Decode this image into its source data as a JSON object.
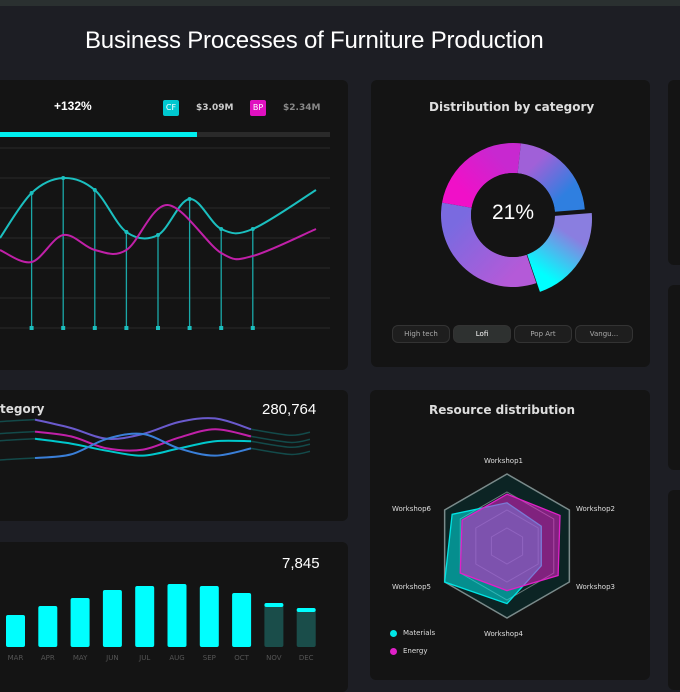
{
  "header": {
    "title": "Business Processes of Furniture Production"
  },
  "cashflow": {
    "change": "+132%",
    "progress": 0.61,
    "legend": [
      {
        "code": "CF",
        "value": "$3.09M",
        "color": "#00d8de"
      },
      {
        "code": "BP",
        "value": "$2.34M",
        "color": "#e010c0"
      }
    ],
    "chart_data": {
      "type": "line",
      "series": [
        {
          "color": "#1bbfbf",
          "points": [
            [
              0,
              3.0
            ],
            [
              1,
              4.5
            ],
            [
              2,
              5.0
            ],
            [
              3,
              4.6
            ],
            [
              4,
              3.2
            ],
            [
              5,
              3.1
            ],
            [
              6,
              4.3
            ],
            [
              7,
              3.3
            ],
            [
              8,
              3.3
            ],
            [
              10,
              4.6
            ]
          ]
        },
        {
          "color": "#c020a8",
          "points": [
            [
              0,
              2.6
            ],
            [
              1,
              2.2
            ],
            [
              2,
              3.1
            ],
            [
              3,
              2.6
            ],
            [
              4,
              2.6
            ],
            [
              5.3,
              4.1
            ],
            [
              7,
              2.5
            ],
            [
              8,
              2.4
            ],
            [
              10,
              3.3
            ]
          ]
        }
      ],
      "stems": [
        1,
        2,
        3,
        4,
        5,
        6,
        7,
        8
      ],
      "ylim": [
        0,
        6
      ],
      "grid": true
    },
    "buttons": [
      "···",
      "···",
      "···",
      "···",
      "··",
      "··",
      "···",
      "···",
      "···",
      "···",
      "···"
    ]
  },
  "category_lines": {
    "title": "tegory",
    "total": "280,764",
    "chart_data": {
      "type": "line",
      "series": [
        {
          "color": "#6a5acd",
          "values": [
            4.2,
            3.5,
            2.6,
            3.0,
            4.0,
            4.3,
            3.4
          ]
        },
        {
          "color": "#c020a8",
          "values": [
            3.2,
            2.8,
            1.8,
            1.7,
            2.7,
            3.4,
            2.8
          ]
        },
        {
          "color": "#00c8cc",
          "values": [
            2.6,
            2.2,
            1.6,
            1.2,
            1.8,
            2.4,
            2.4
          ]
        },
        {
          "color": "#3a7fd8",
          "values": [
            1.0,
            1.3,
            2.6,
            3.0,
            1.8,
            1.2,
            1.8
          ]
        }
      ]
    }
  },
  "monthly": {
    "total": "7,845",
    "chart_data": {
      "type": "bar",
      "categories": [
        "MAR",
        "APR",
        "MAY",
        "JUN",
        "JUL",
        "AUG",
        "SEP",
        "OCT",
        "NOV",
        "DEC"
      ],
      "values": [
        32,
        41,
        49,
        57,
        61,
        63,
        61,
        54,
        44,
        39
      ],
      "forecast": [
        false,
        false,
        false,
        false,
        false,
        false,
        false,
        false,
        true,
        true
      ]
    }
  },
  "donut": {
    "title": "Distribution by category",
    "center": "21%",
    "chart_data": {
      "type": "pie",
      "slices": [
        {
          "value": 21,
          "colors": [
            "#8a7ee0",
            "#00ffff"
          ],
          "exploded": true
        },
        {
          "value": 33,
          "colors": [
            "#b45ad8",
            "#7a6ae0"
          ]
        },
        {
          "value": 24,
          "colors": [
            "#f010c8",
            "#c828d0"
          ]
        },
        {
          "value": 22,
          "colors": [
            "#a060d8",
            "#2f7fe0"
          ]
        }
      ]
    },
    "styles": [
      {
        "label": "High tech",
        "active": false
      },
      {
        "label": "Lofi",
        "active": true
      },
      {
        "label": "Pop Art",
        "active": false
      },
      {
        "label": "Vangu...",
        "active": false
      }
    ]
  },
  "radar": {
    "title": "Resource distribution",
    "chart_data": {
      "type": "radar",
      "axes": [
        "Workshop1",
        "Workshop2",
        "Workshop3",
        "Workshop4",
        "Workshop5",
        "Workshop6"
      ],
      "series": [
        {
          "name": "Materials",
          "color": "#00e5e5",
          "values": [
            0.6,
            0.55,
            0.55,
            0.8,
            1.0,
            0.88
          ]
        },
        {
          "name": "Energy",
          "color": "#e020c8",
          "values": [
            0.72,
            0.85,
            0.82,
            0.62,
            0.75,
            0.72
          ]
        }
      ]
    }
  }
}
